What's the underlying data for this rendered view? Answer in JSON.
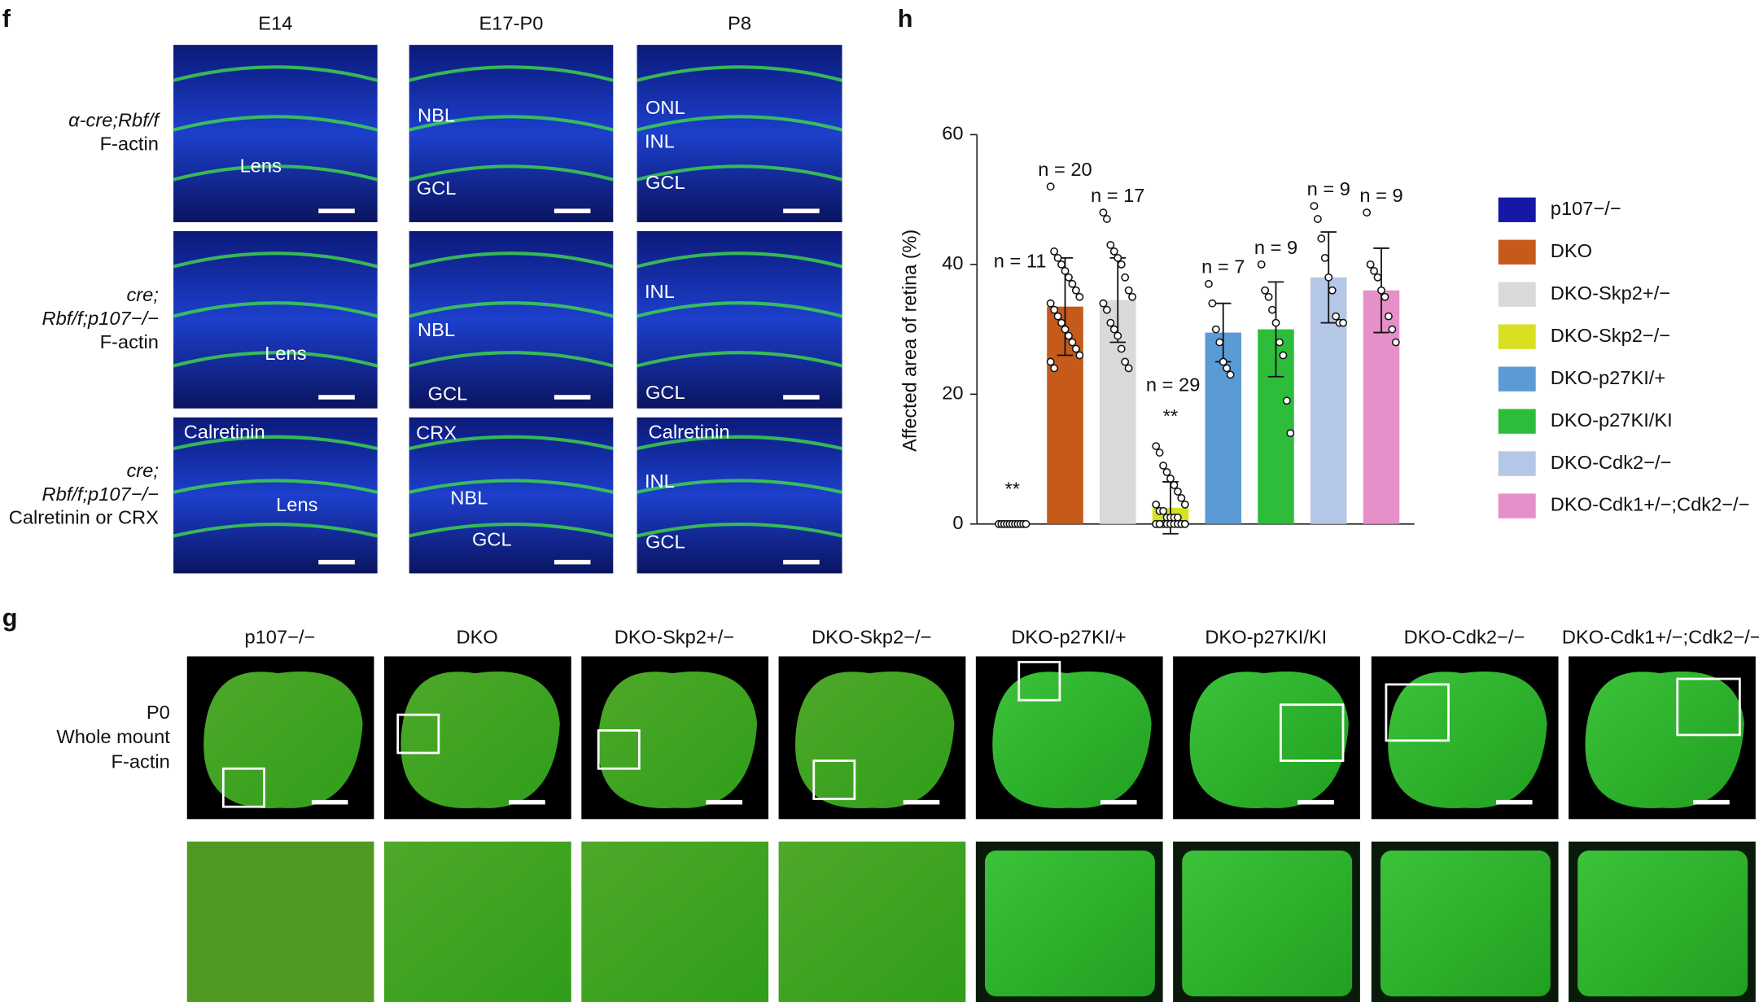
{
  "panel_f": {
    "letter": "f",
    "columns": [
      "E14",
      "E17-P0",
      "P8"
    ],
    "row_labels": [
      [
        "α-cre;Rbf/f",
        "F-actin"
      ],
      [
        "cre;",
        "Rbf/f;p107−/−",
        "F-actin"
      ],
      [
        "cre;",
        "Rbf/f;p107−/−",
        "Calretinin or CRX"
      ]
    ],
    "image_labels": [
      [
        [
          "Lens"
        ],
        [
          "NBL",
          "GCL"
        ],
        [
          "ONL",
          "INL",
          "GCL"
        ]
      ],
      [
        [
          "Lens"
        ],
        [
          "NBL",
          "GCL"
        ],
        [
          "INL",
          "GCL"
        ]
      ],
      [
        [
          "Calretinin",
          "Lens"
        ],
        [
          "CRX",
          "NBL",
          "GCL"
        ],
        [
          "Calretinin",
          "INL",
          "GCL"
        ]
      ]
    ]
  },
  "panel_g": {
    "letter": "g",
    "columns": [
      "p107−/−",
      "DKO",
      "DKO-Skp2+/−",
      "DKO-Skp2−/−",
      "DKO-p27KI/+",
      "DKO-p27KI/KI",
      "DKO-Cdk2−/−",
      "DKO-Cdk1+/−;Cdk2−/−"
    ],
    "row_label": [
      "P0",
      "Whole mount",
      "F-actin"
    ]
  },
  "chart_data": {
    "type": "bar",
    "panel_letter": "h",
    "y_label": "Affected area of retina (%)",
    "categories": [
      "p107−/−",
      "DKO",
      "DKO-Skp2+/−",
      "DKO-Skp2−/−",
      "DKO-p27KI/+",
      "DKO-p27KI/KI",
      "DKO-Cdk2−/−",
      "DKO-Cdk1+/−;Cdk2−/−"
    ],
    "colors": [
      "#1717a6",
      "#c55a1a",
      "#d9d9d9",
      "#d8e022",
      "#5b9bd5",
      "#2ebd3a",
      "#b4c7e7",
      "#e68fc9"
    ],
    "values": [
      0,
      33.5,
      34.5,
      2.5,
      29.5,
      30,
      38,
      36
    ],
    "errors": [
      0,
      7.5,
      6.5,
      4,
      4.5,
      7.3,
      7,
      6.5
    ],
    "points": [
      [
        0,
        0,
        0,
        0,
        0,
        0,
        0,
        0,
        0,
        0,
        0
      ],
      [
        52,
        42,
        41,
        40,
        39,
        38,
        37,
        36,
        35,
        34,
        33,
        32,
        31,
        30,
        29,
        28,
        27,
        26,
        25,
        24
      ],
      [
        48,
        47,
        43,
        42,
        41,
        40,
        38,
        36,
        35,
        34,
        33,
        31,
        30,
        29,
        27,
        25,
        24
      ],
      [
        12,
        11,
        9,
        8,
        7,
        6,
        5,
        4,
        3,
        3,
        2,
        2,
        1,
        1,
        1,
        1,
        0,
        0,
        0,
        0,
        0,
        0,
        0,
        0,
        0,
        0,
        0,
        0,
        0
      ],
      [
        37,
        34,
        30,
        28,
        25,
        24,
        23
      ],
      [
        40,
        36,
        35,
        33,
        31,
        28,
        26,
        19,
        14
      ],
      [
        49,
        47,
        44,
        41,
        38,
        36,
        32,
        31,
        31
      ],
      [
        48,
        40,
        39,
        38,
        36,
        35,
        32,
        30,
        28
      ]
    ],
    "n_labels": [
      "n = 11",
      "n = 20",
      "n = 17",
      "n = 29",
      "n = 7",
      "n = 9",
      "n = 9",
      "n = 9"
    ],
    "significance": [
      "**",
      null,
      null,
      "**",
      null,
      null,
      null,
      null
    ],
    "ylim": [
      0,
      60
    ],
    "yticks": [
      0,
      20,
      40,
      60
    ]
  }
}
